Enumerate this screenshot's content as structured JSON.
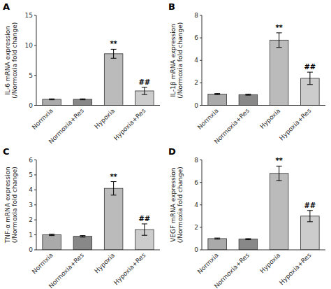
{
  "chart_data": [
    {
      "type": "bar",
      "title": "A",
      "ylabel": "IL-6 mRNA expression\n(/Normoxia fold change)",
      "categories": [
        "Normxia",
        "Normoxia+Res",
        "Hypoxia",
        "Hypoxia+Res"
      ],
      "values": [
        1.0,
        1.0,
        8.6,
        2.4
      ],
      "errors": [
        0.08,
        0.08,
        0.75,
        0.6
      ],
      "annotations": [
        null,
        null,
        "**",
        "##"
      ],
      "colors": [
        "#aaaaaa",
        "#888888",
        "#bbbbbb",
        "#cccccc"
      ],
      "ylim": [
        0,
        15
      ],
      "yticks": [
        0,
        5,
        10,
        15
      ],
      "grid": false
    },
    {
      "type": "bar",
      "title": "B",
      "ylabel": "IL-1β mRNA expression\n(/Normoxia fold change)",
      "categories": [
        "Normxia",
        "Normoxia+Res",
        "Hypoxia",
        "Hypoxia+Res"
      ],
      "values": [
        1.0,
        0.95,
        5.8,
        2.4
      ],
      "errors": [
        0.05,
        0.05,
        0.65,
        0.55
      ],
      "annotations": [
        null,
        null,
        "**",
        "##"
      ],
      "colors": [
        "#aaaaaa",
        "#888888",
        "#bbbbbb",
        "#cccccc"
      ],
      "ylim": [
        0,
        8
      ],
      "yticks": [
        0,
        2,
        4,
        6,
        8
      ],
      "grid": false
    },
    {
      "type": "bar",
      "title": "C",
      "ylabel": "TNF-α mRNA expression\n(/Normoxia fold change)",
      "categories": [
        "Normxia",
        "Normoxia+Res",
        "Hypoxia",
        "Hypoxia+Res"
      ],
      "values": [
        1.0,
        0.9,
        4.1,
        1.35
      ],
      "errors": [
        0.05,
        0.05,
        0.45,
        0.38
      ],
      "annotations": [
        null,
        null,
        "**",
        "##"
      ],
      "colors": [
        "#aaaaaa",
        "#888888",
        "#bbbbbb",
        "#cccccc"
      ],
      "ylim": [
        0,
        6
      ],
      "yticks": [
        0,
        1,
        2,
        3,
        4,
        5,
        6
      ],
      "grid": false
    },
    {
      "type": "bar",
      "title": "D",
      "ylabel": "VEGF mRNA expression\n(/Normoxia fold change)",
      "categories": [
        "Normxia",
        "Normoxia+Res",
        "Hypoxia",
        "Hypoxia+Res"
      ],
      "values": [
        1.0,
        0.95,
        6.8,
        3.0
      ],
      "errors": [
        0.05,
        0.05,
        0.65,
        0.5
      ],
      "annotations": [
        null,
        null,
        "**",
        "##"
      ],
      "colors": [
        "#aaaaaa",
        "#888888",
        "#bbbbbb",
        "#cccccc"
      ],
      "ylim": [
        0,
        8
      ],
      "yticks": [
        0,
        2,
        4,
        6,
        8
      ],
      "grid": false
    }
  ]
}
